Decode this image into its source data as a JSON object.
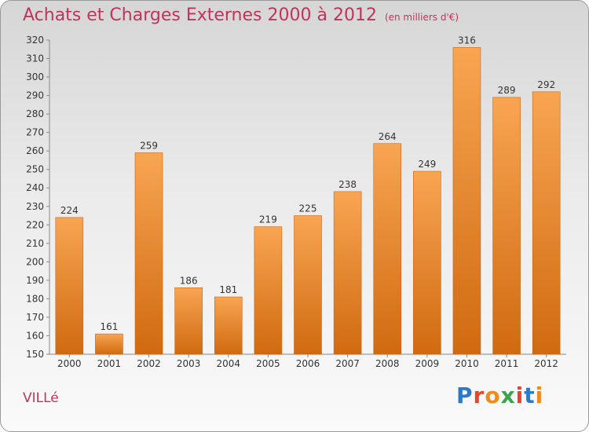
{
  "title": {
    "main": "Achats et Charges Externes 2000 à 2012",
    "unit": "(en milliers d'€)"
  },
  "place": "VILLé",
  "logo": {
    "text": "Proxiti",
    "letter_colors": [
      "#2c7ac7",
      "#e8442b",
      "#f08a1c",
      "#3aa54a",
      "#e8442b",
      "#2c7ac7",
      "#f08a1c"
    ]
  },
  "colors": {
    "bar_top": "#f8a552",
    "bar_bottom": "#d06a10",
    "title": "#c2335a"
  },
  "chart_data": {
    "type": "bar",
    "categories": [
      "2000",
      "2001",
      "2002",
      "2003",
      "2004",
      "2005",
      "2006",
      "2007",
      "2008",
      "2009",
      "2010",
      "2011",
      "2012"
    ],
    "values": [
      224,
      161,
      259,
      186,
      181,
      219,
      225,
      238,
      264,
      249,
      316,
      289,
      292
    ],
    "ylim": [
      150,
      320
    ],
    "yticks": [
      150,
      160,
      170,
      180,
      190,
      200,
      210,
      220,
      230,
      240,
      250,
      260,
      270,
      280,
      290,
      300,
      310,
      320
    ],
    "grid": false,
    "legend": "none"
  }
}
